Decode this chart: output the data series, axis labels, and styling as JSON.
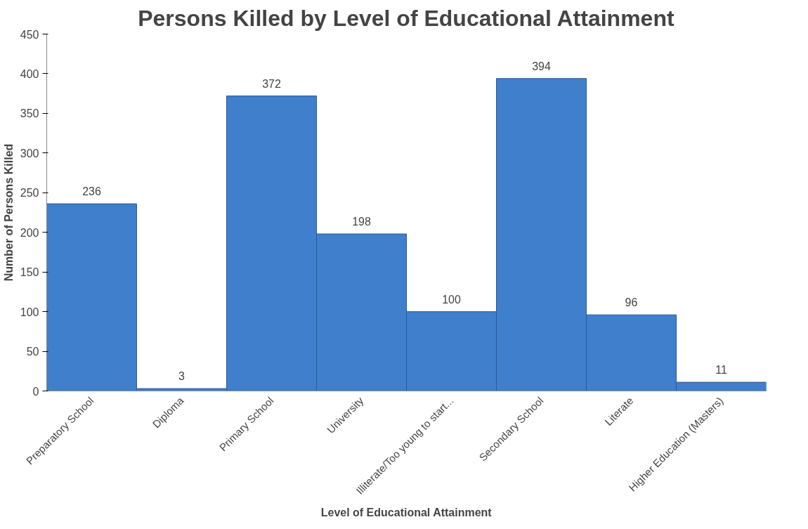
{
  "chart_data": {
    "type": "bar",
    "title": "Persons Killed by Level of Educational Attainment",
    "xlabel": "Level of Educational Attainment",
    "ylabel": "Number of Persons Killed",
    "categories": [
      "Preparatory School",
      "Diploma",
      "Primary School",
      "University",
      "Illiterate/Too young to start...",
      "Secondary School",
      "Literate",
      "Higher Education (Masters)"
    ],
    "values": [
      236,
      3,
      372,
      198,
      100,
      394,
      96,
      11
    ],
    "color": "#3f7fcc",
    "ylim": [
      0,
      450
    ],
    "yticks": [
      0,
      50,
      100,
      150,
      200,
      250,
      300,
      350,
      400,
      450
    ],
    "data_labels": true,
    "grid": false
  }
}
